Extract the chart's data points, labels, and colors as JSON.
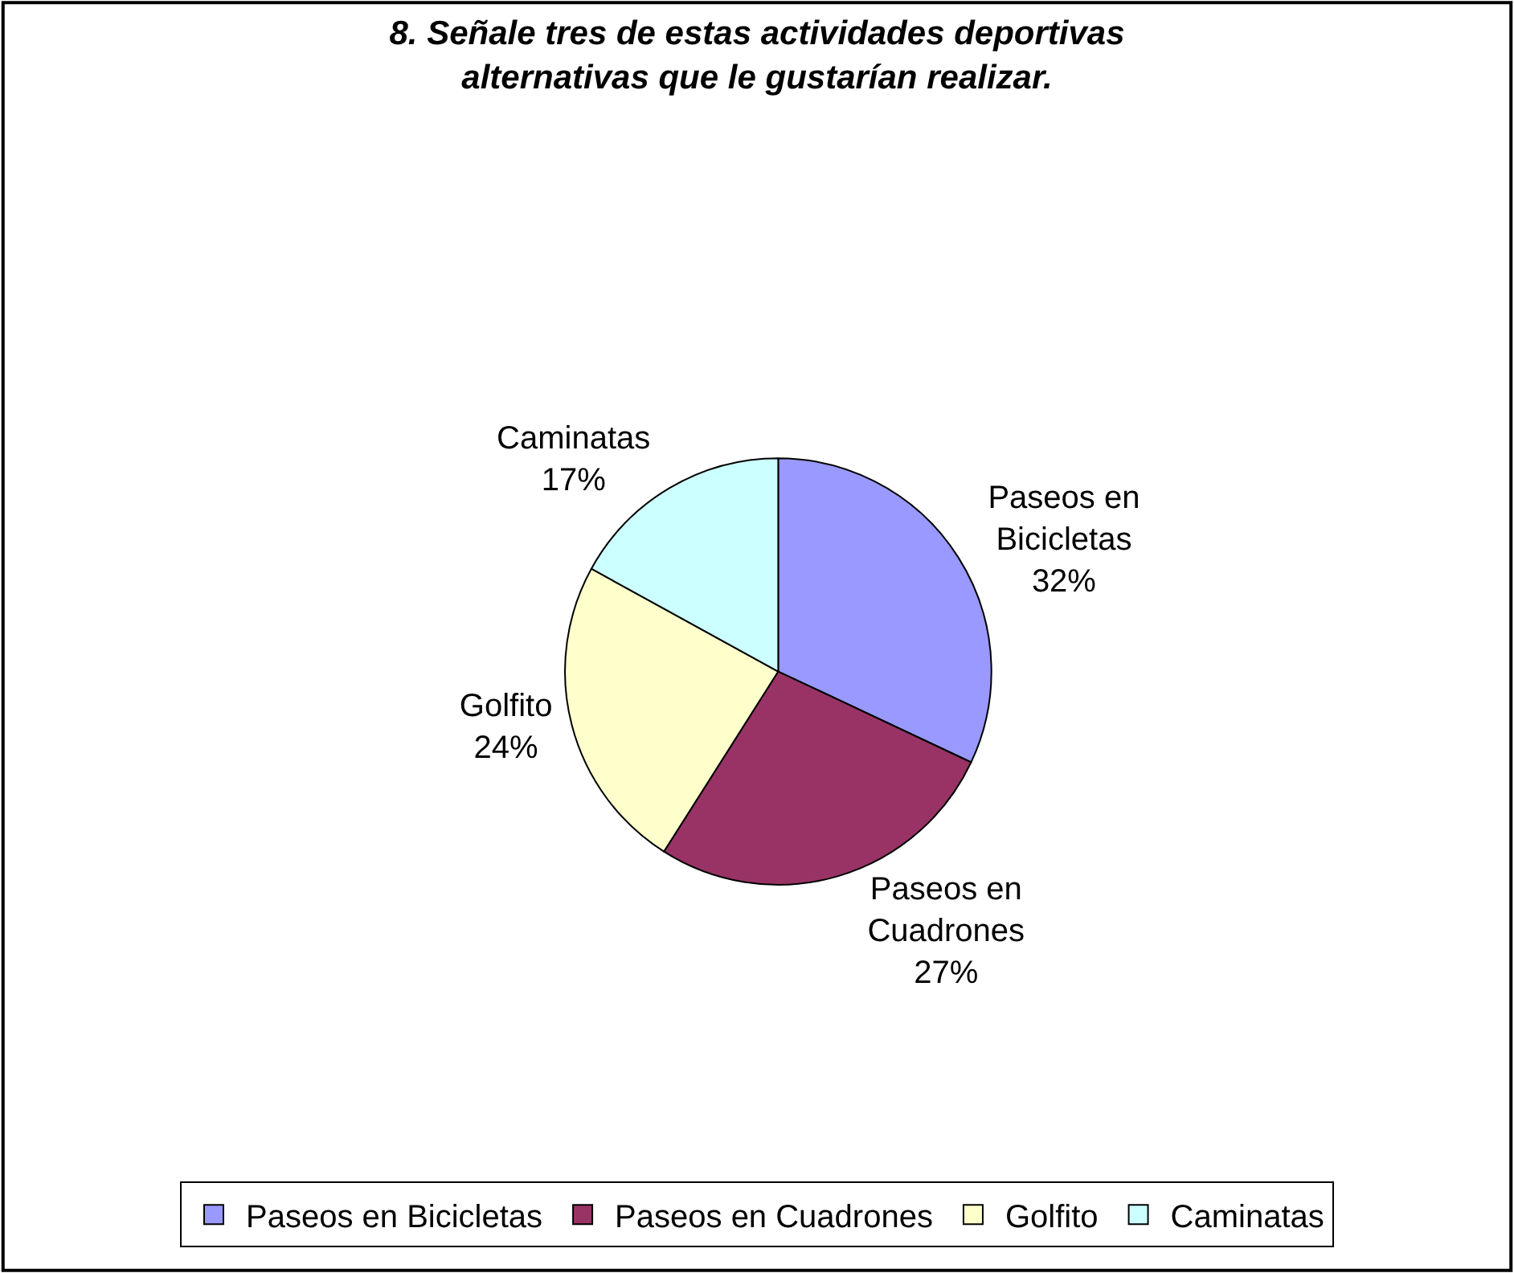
{
  "chart_data": {
    "type": "pie",
    "title": "8. Señale tres de estas actividades deportivas alternativas que le gustarían realizar.",
    "categories": [
      "Paseos en Bicicletas",
      "Paseos en Cuadrones",
      "Golfito",
      "Caminatas"
    ],
    "values": [
      32,
      27,
      24,
      17
    ],
    "value_labels": [
      "32%",
      "27%",
      "24%",
      "17%"
    ],
    "colors": [
      "#9999ff",
      "#993366",
      "#ffffcc",
      "#ccffff"
    ],
    "legend": "bottom"
  }
}
